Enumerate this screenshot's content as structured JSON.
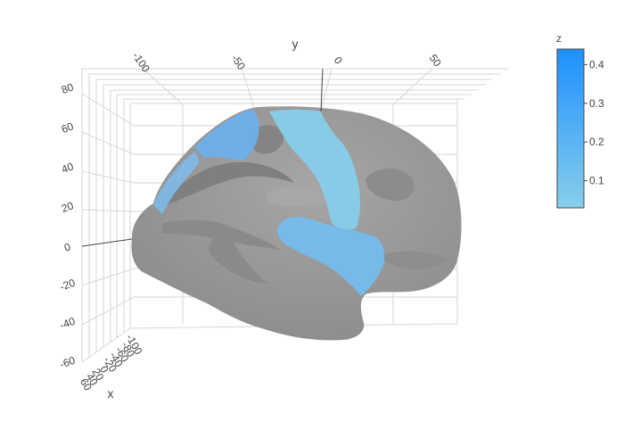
{
  "chart_data": {
    "type": "mesh3d",
    "axes": {
      "x": {
        "title": "x",
        "tick_labels": [
          "60",
          "40",
          "20",
          "0",
          "-20",
          "-40",
          "-60",
          "-80",
          "-100"
        ]
      },
      "y": {
        "title": "y",
        "tick_labels": [
          "-100",
          "-50",
          "0",
          "50"
        ],
        "range": [
          -110,
          75
        ]
      },
      "z": {
        "title": "",
        "tick_labels": [
          "80",
          "60",
          "40",
          "20",
          "0",
          "-20",
          "-40",
          "-60"
        ],
        "range": [
          -60,
          80
        ]
      }
    },
    "colorbar": {
      "title": "z",
      "tick_labels": [
        "0.4",
        "0.3",
        "0.2",
        "0.1"
      ],
      "range": [
        0.03,
        0.44
      ],
      "colors": [
        "#87ceeb",
        "#1e90ff"
      ]
    },
    "surface": {
      "base_color": "#999999",
      "highlighted_regions": [
        {
          "name": "superior parietal / precentral",
          "value": 0.3
        },
        {
          "name": "central strip",
          "value": 0.05
        },
        {
          "name": "superior temporal",
          "value": 0.1
        },
        {
          "name": "posterior frontal edge",
          "value": 0.25
        }
      ]
    },
    "grid": true,
    "legend": "none"
  }
}
